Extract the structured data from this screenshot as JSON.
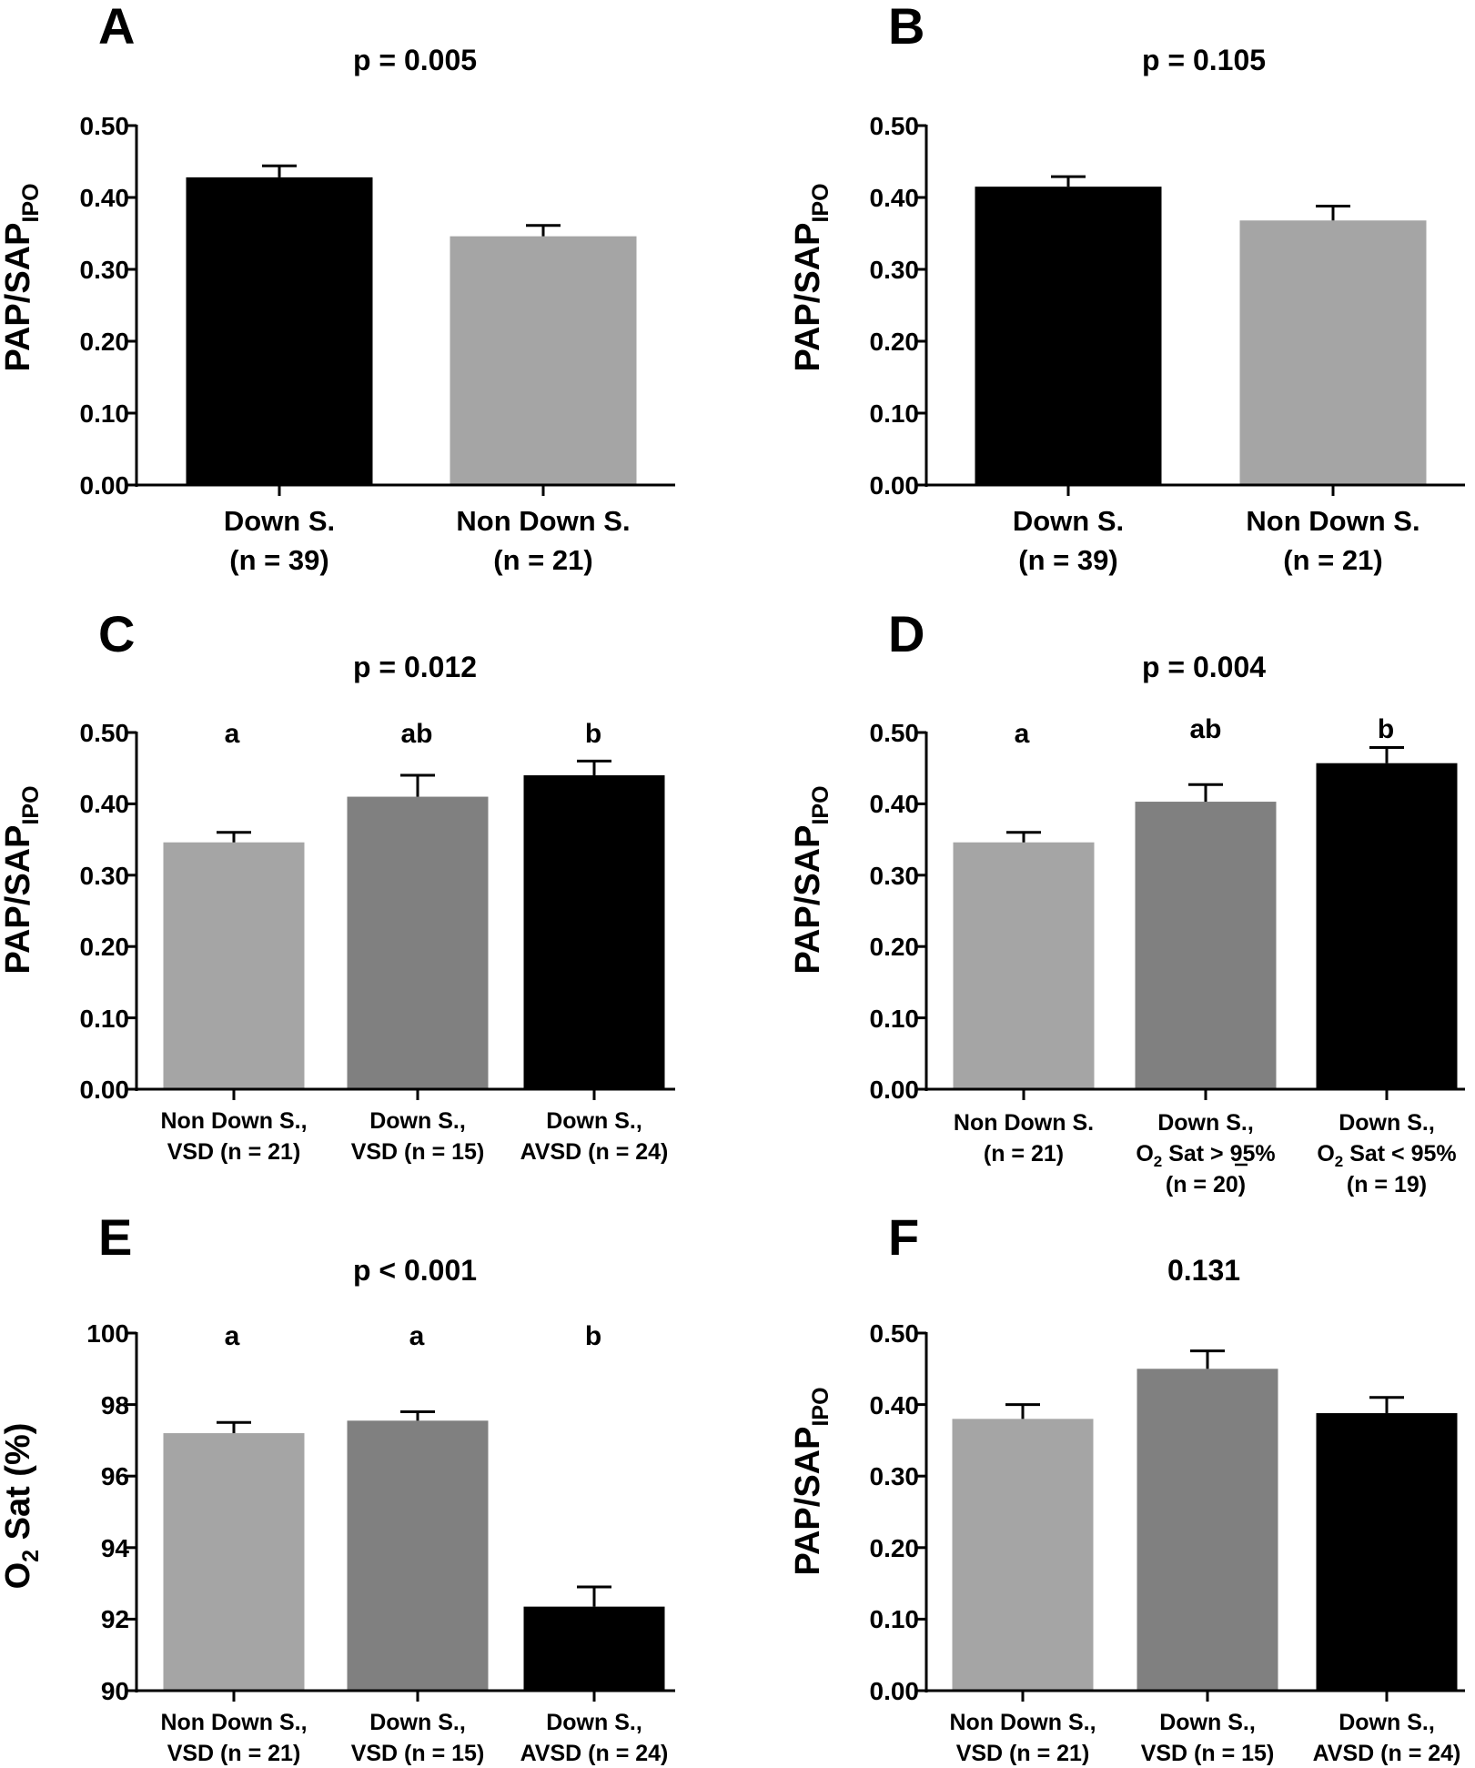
{
  "figure": {
    "panels": [
      {
        "letter": "A",
        "pvalue": "p = 0.005",
        "ylabel_main": "PAP/SAP",
        "ylabel_sub": "IPO",
        "ticks": [
          "0.00",
          "0.10",
          "0.20",
          "0.30",
          "0.40",
          "0.50"
        ]
      },
      {
        "letter": "B",
        "pvalue": "p = 0.105",
        "ylabel_main": "PAP/SAP",
        "ylabel_sub": "IPO",
        "ticks": [
          "0.00",
          "0.10",
          "0.20",
          "0.30",
          "0.40",
          "0.50"
        ]
      },
      {
        "letter": "C",
        "pvalue": "p = 0.012",
        "ylabel_main": "PAP/SAP",
        "ylabel_sub": "IPO",
        "ticks": [
          "0.00",
          "0.10",
          "0.20",
          "0.30",
          "0.40",
          "0.50"
        ]
      },
      {
        "letter": "D",
        "pvalue": "p = 0.004",
        "ylabel_main": "PAP/SAP",
        "ylabel_sub": "IPO",
        "ticks": [
          "0.00",
          "0.10",
          "0.20",
          "0.30",
          "0.40",
          "0.50"
        ]
      },
      {
        "letter": "E",
        "pvalue": "p < 0.001",
        "ylabel_pre": "O",
        "ylabel_sub": "2",
        "ylabel_post": " Sat (%)",
        "ticks": [
          "90",
          "92",
          "94",
          "96",
          "98",
          "100"
        ]
      },
      {
        "letter": "F",
        "pvalue": "0.131",
        "ylabel_main": "PAP/SAP",
        "ylabel_sub": "IPO",
        "ticks": [
          "0.00",
          "0.10",
          "0.20",
          "0.30",
          "0.40",
          "0.50"
        ]
      }
    ],
    "categories": {
      "down_s": "Down S.",
      "non_down_s": "Non Down S.",
      "n39": "(n = 39)",
      "n21": "(n = 21)",
      "non_down_s_c": "Non Down S.,",
      "down_s_c": "Down S.,",
      "vsd21": "VSD (n = 21)",
      "vsd15": "VSD (n = 15)",
      "avsd24": "AVSD (n = 24)",
      "o2_pre": "O",
      "o2_sub": "2",
      "sat_ge": " Sat > 95%",
      "sat_lt": " Sat < 95%",
      "n20": "(n = 20)",
      "n19": "(n = 19)"
    },
    "sig_letters": {
      "a": "a",
      "ab": "ab",
      "b": "b"
    }
  },
  "colors": {
    "black": "#000000",
    "dark_gray": "#808080",
    "light_gray": "#a5a5a5"
  },
  "chart_data": [
    {
      "panel": "A",
      "type": "bar",
      "title": "p = 0.005",
      "ylabel": "PAP/SAP IPO",
      "ylim": [
        0,
        0.5
      ],
      "categories": [
        "Down S. (n = 39)",
        "Non Down S. (n = 21)"
      ],
      "values": [
        0.428,
        0.346
      ],
      "errors": [
        0.016,
        0.015
      ],
      "colors": [
        "#000000",
        "#a5a5a5"
      ]
    },
    {
      "panel": "B",
      "type": "bar",
      "title": "p = 0.105",
      "ylabel": "PAP/SAP IPO",
      "ylim": [
        0,
        0.5
      ],
      "categories": [
        "Down S. (n = 39)",
        "Non Down S. (n = 21)"
      ],
      "values": [
        0.415,
        0.368
      ],
      "errors": [
        0.014,
        0.02
      ],
      "colors": [
        "#000000",
        "#a5a5a5"
      ]
    },
    {
      "panel": "C",
      "type": "bar",
      "title": "p = 0.012",
      "ylabel": "PAP/SAP IPO",
      "ylim": [
        0,
        0.5
      ],
      "categories": [
        "Non Down S., VSD (n = 21)",
        "Down S., VSD (n = 15)",
        "Down S., AVSD (n = 24)"
      ],
      "values": [
        0.346,
        0.41,
        0.44
      ],
      "errors": [
        0.014,
        0.03,
        0.02
      ],
      "significance": [
        "a",
        "ab",
        "b"
      ],
      "colors": [
        "#a5a5a5",
        "#808080",
        "#000000"
      ]
    },
    {
      "panel": "D",
      "type": "bar",
      "title": "p = 0.004",
      "ylabel": "PAP/SAP IPO",
      "ylim": [
        0,
        0.5
      ],
      "categories": [
        "Non Down S. (n = 21)",
        "Down S., O2 Sat ≥ 95% (n = 20)",
        "Down S., O2 Sat < 95% (n = 19)"
      ],
      "values": [
        0.346,
        0.403,
        0.457
      ],
      "errors": [
        0.014,
        0.024,
        0.022
      ],
      "significance": [
        "a",
        "ab",
        "b"
      ],
      "colors": [
        "#a5a5a5",
        "#808080",
        "#000000"
      ]
    },
    {
      "panel": "E",
      "type": "bar",
      "title": "p < 0.001",
      "ylabel": "O2 Sat (%)",
      "ylim": [
        90,
        100
      ],
      "categories": [
        "Non Down S., VSD (n = 21)",
        "Down S., VSD (n = 15)",
        "Down S., AVSD (n = 24)"
      ],
      "values": [
        97.2,
        97.55,
        92.35
      ],
      "errors": [
        0.3,
        0.25,
        0.55
      ],
      "significance": [
        "a",
        "a",
        "b"
      ],
      "colors": [
        "#a5a5a5",
        "#808080",
        "#000000"
      ]
    },
    {
      "panel": "F",
      "type": "bar",
      "title": "0.131",
      "ylabel": "PAP/SAP IPO",
      "ylim": [
        0,
        0.5
      ],
      "categories": [
        "Non Down S., VSD (n = 21)",
        "Down S., VSD (n = 15)",
        "Down S., AVSD (n = 24)"
      ],
      "values": [
        0.38,
        0.45,
        0.388
      ],
      "errors": [
        0.02,
        0.025,
        0.022
      ],
      "colors": [
        "#a5a5a5",
        "#808080",
        "#000000"
      ]
    }
  ]
}
